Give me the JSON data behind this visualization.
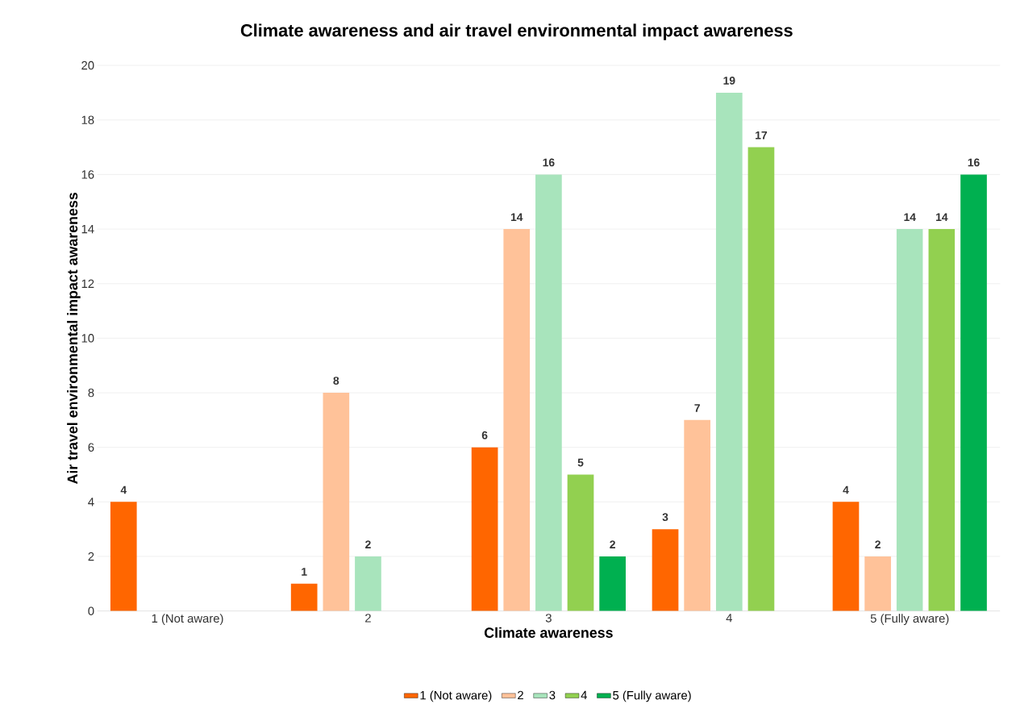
{
  "chart_data": {
    "type": "bar",
    "title": "Climate awareness and air travel environmental impact awareness",
    "xlabel": "Climate awareness",
    "ylabel": "Air travel environmental impact awareness",
    "categories": [
      "1 (Not aware)",
      "2",
      "3",
      "4",
      "5 (Fully aware)"
    ],
    "series": [
      {
        "name": "1 (Not aware)",
        "color": "#ff6600",
        "values": [
          4,
          1,
          6,
          3,
          4
        ]
      },
      {
        "name": "2",
        "color": "#ffc299",
        "values": [
          null,
          8,
          14,
          7,
          2
        ]
      },
      {
        "name": "3",
        "color": "#a8e4bc",
        "values": [
          null,
          2,
          16,
          19,
          14
        ]
      },
      {
        "name": "4",
        "color": "#92d050",
        "values": [
          null,
          null,
          5,
          17,
          14
        ]
      },
      {
        "name": "5 (Fully aware)",
        "color": "#00b050",
        "values": [
          null,
          null,
          2,
          null,
          16
        ]
      }
    ],
    "ylim": [
      0,
      20
    ],
    "yticks": [
      0,
      2,
      4,
      6,
      8,
      10,
      12,
      14,
      16,
      18,
      20
    ],
    "grid": "y",
    "legend": "bottom",
    "data_labels": true
  }
}
